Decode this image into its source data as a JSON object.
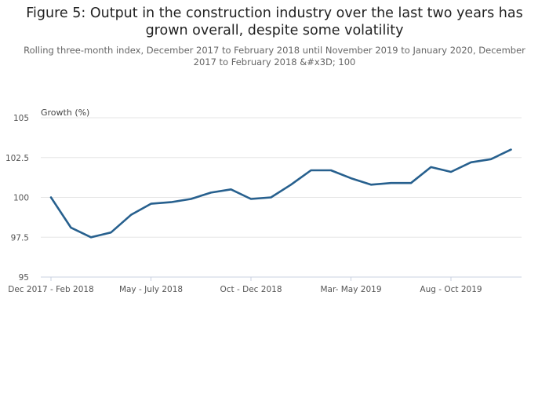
{
  "chart_data": {
    "type": "line",
    "title": "Figure 5: Output in the construction industry over the last two years has grown overall, despite some volatility",
    "subtitle": "Rolling three-month index, December 2017 to February 2018 until November 2019 to January 2020, December 2017 to February 2018 &#x3D; 100",
    "ylabel": "Growth (%)",
    "xlabel": "",
    "ylim": [
      95,
      105
    ],
    "yticks": [
      "105",
      "102.5",
      "100",
      "97.5",
      "95"
    ],
    "yticks_values": [
      105,
      102.5,
      100,
      97.5,
      95
    ],
    "xtick_labels": [
      {
        "index": 0,
        "label": "Dec 2017 - Feb 2018"
      },
      {
        "index": 5,
        "label": "May - July 2018"
      },
      {
        "index": 10,
        "label": "Oct - Dec 2018"
      },
      {
        "index": 15,
        "label": "Mar- May 2019"
      },
      {
        "index": 20,
        "label": "Aug - Oct 2019"
      }
    ],
    "grid": true,
    "colors": {
      "line": "#27608e",
      "grid": "#e6e6e6",
      "axis": "#c8d0e0"
    },
    "series": [
      {
        "values": [
          100,
          98.1,
          97.5,
          97.8,
          98.9,
          99.6,
          99.7,
          99.9,
          100.3,
          100.5,
          99.9,
          100.0,
          100.8,
          101.7,
          101.7,
          101.2,
          100.8,
          100.9,
          100.9,
          101.9,
          101.6,
          102.2,
          102.4,
          103.0
        ]
      }
    ]
  }
}
